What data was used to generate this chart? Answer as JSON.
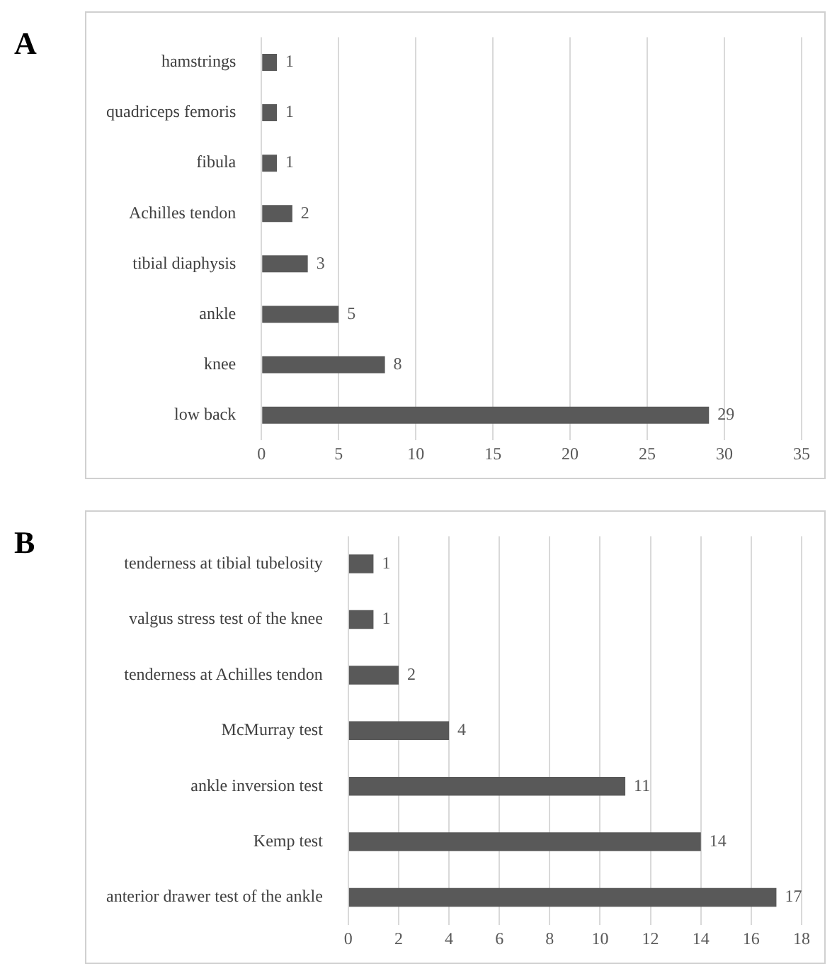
{
  "chart_data": [
    {
      "type": "bar",
      "title": "A",
      "orientation": "horizontal",
      "categories": [
        "hamstrings",
        "quadriceps femoris",
        "fibula",
        "Achilles tendon",
        "tibial diaphysis",
        "ankle",
        "knee",
        "low back"
      ],
      "values": [
        1,
        1,
        1,
        2,
        3,
        5,
        8,
        29
      ],
      "color": "#595959",
      "xlim": [
        0,
        35
      ],
      "xticks": [
        0,
        5,
        10,
        15,
        20,
        25,
        30,
        35
      ],
      "grid": "x",
      "data_labels": true
    },
    {
      "type": "bar",
      "title": "B",
      "orientation": "horizontal",
      "categories": [
        "tenderness at tibial tubelosity",
        "valgus stress test of the knee",
        "tenderness at Achilles tendon",
        "McMurray test",
        "ankle inversion test",
        "Kemp test",
        "anterior drawer test of the ankle"
      ],
      "values": [
        1,
        1,
        2,
        4,
        11,
        14,
        17
      ],
      "color": "#595959",
      "xlim": [
        0,
        18
      ],
      "xticks": [
        0,
        2,
        4,
        6,
        8,
        10,
        12,
        14,
        16,
        18
      ],
      "grid": "x",
      "data_labels": true
    }
  ]
}
